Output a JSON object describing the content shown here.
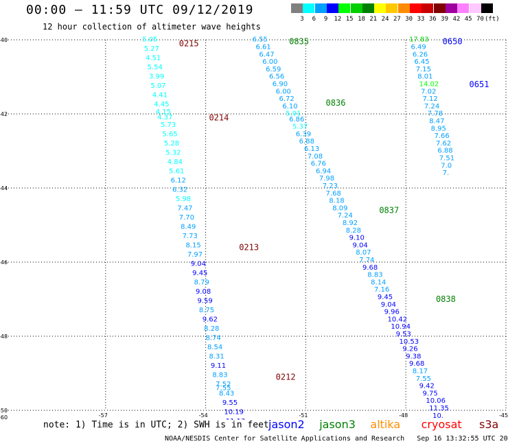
{
  "header": {
    "title": "00:00 — 11:59 UTC 09/12/2019",
    "subtitle": "12 hour collection of altimeter wave heights"
  },
  "colorbar": {
    "labels": [
      "3",
      "6",
      "9",
      "12",
      "15",
      "18",
      "21",
      "24",
      "27",
      "30",
      "33",
      "36",
      "39",
      "42",
      "45",
      "70",
      "(ft)"
    ],
    "colors": [
      "#808080",
      "#00ffff",
      "#00a0ff",
      "#0000ff",
      "#00ff00",
      "#00d000",
      "#008000",
      "#ffff00",
      "#ffc800",
      "#ff8c00",
      "#ff0000",
      "#c80000",
      "#800000",
      "#a000a0",
      "#ff80ff",
      "#ffc8ff",
      "#000000"
    ]
  },
  "footer": {
    "note": "note: 1) Time is in UTC; 2) SWH is in feet",
    "satellites": [
      {
        "name": "jason2",
        "color": "#0000ff"
      },
      {
        "name": "jason3",
        "color": "#008000"
      },
      {
        "name": "altika",
        "color": "#ff8c00"
      },
      {
        "name": "cryosat",
        "color": "#ff0000"
      },
      {
        "name": "s3a",
        "color": "#800000"
      }
    ],
    "credit": "NOAA/NESDIS Center for Satellite Applications and Research   Sep 16 13:32:55 UTC 2019"
  },
  "chart_data": {
    "type": "scatter",
    "xlim": [
      -60,
      -45
    ],
    "ylim": [
      -50,
      -40
    ],
    "x_ticks": [
      "-57",
      "-54",
      "-51",
      "-48",
      "-45"
    ],
    "y_ticks": [
      "-40",
      "-42",
      "-44",
      "-46",
      "-48",
      "-50"
    ],
    "corner_label": "-60",
    "grid": true,
    "series": [
      {
        "name": "cryosat",
        "color": "#800000",
        "time_labels": [
          {
            "text": "0215",
            "lon": -54.8,
            "lat": -40.1
          },
          {
            "text": "0214",
            "lon": -53.9,
            "lat": -42.1
          },
          {
            "text": "0213",
            "lon": -53.0,
            "lat": -45.6
          },
          {
            "text": "0212",
            "lon": -51.9,
            "lat": -49.1
          }
        ],
        "points": [
          {
            "lon": -55.9,
            "lat": -40.05,
            "v": "5.05"
          },
          {
            "lon": -55.85,
            "lat": -40.3,
            "v": "5.27"
          },
          {
            "lon": -55.8,
            "lat": -40.55,
            "v": "4.51"
          },
          {
            "lon": -55.75,
            "lat": -40.8,
            "v": "5.54"
          },
          {
            "lon": -55.7,
            "lat": -41.05,
            "v": "3.99"
          },
          {
            "lon": -55.65,
            "lat": -41.3,
            "v": "5.07"
          },
          {
            "lon": -55.6,
            "lat": -41.55,
            "v": "4.41"
          },
          {
            "lon": -55.55,
            "lat": -41.8,
            "v": "4.45"
          },
          {
            "lon": -55.5,
            "lat": -42.0,
            "v": "4.15"
          },
          {
            "lon": -55.45,
            "lat": -42.15,
            "v": "4.37"
          },
          {
            "lon": -55.35,
            "lat": -42.35,
            "v": "5.73"
          },
          {
            "lon": -55.3,
            "lat": -42.6,
            "v": "5.65"
          },
          {
            "lon": -55.25,
            "lat": -42.85,
            "v": "5.28"
          },
          {
            "lon": -55.2,
            "lat": -43.1,
            "v": "5.32"
          },
          {
            "lon": -55.15,
            "lat": -43.35,
            "v": "4.84"
          },
          {
            "lon": -55.1,
            "lat": -43.6,
            "v": "5.61"
          },
          {
            "lon": -55.05,
            "lat": -43.85,
            "v": "6.12"
          },
          {
            "lon": -55.0,
            "lat": -44.1,
            "v": "6.32"
          },
          {
            "lon": -54.9,
            "lat": -44.35,
            "v": "5.98"
          },
          {
            "lon": -54.85,
            "lat": -44.6,
            "v": "7.47"
          },
          {
            "lon": -54.8,
            "lat": -44.85,
            "v": "7.70"
          },
          {
            "lon": -54.75,
            "lat": -45.1,
            "v": "8.49"
          },
          {
            "lon": -54.7,
            "lat": -45.35,
            "v": "7.73"
          },
          {
            "lon": -54.6,
            "lat": -45.6,
            "v": "8.15"
          },
          {
            "lon": -54.55,
            "lat": -45.85,
            "v": "7.97"
          },
          {
            "lon": -54.45,
            "lat": -46.1,
            "v": "9.04"
          },
          {
            "lon": -54.4,
            "lat": -46.35,
            "v": "9.45"
          },
          {
            "lon": -54.35,
            "lat": -46.6,
            "v": "8.79"
          },
          {
            "lon": -54.3,
            "lat": -46.85,
            "v": "9.08"
          },
          {
            "lon": -54.25,
            "lat": -47.1,
            "v": "9.59"
          },
          {
            "lon": -54.2,
            "lat": -47.35,
            "v": "8.75"
          },
          {
            "lon": -54.1,
            "lat": -47.6,
            "v": "9.62"
          },
          {
            "lon": -54.05,
            "lat": -47.85,
            "v": "8.28"
          },
          {
            "lon": -54.0,
            "lat": -48.1,
            "v": "8.74"
          },
          {
            "lon": -53.95,
            "lat": -48.35,
            "v": "8.54"
          },
          {
            "lon": -53.9,
            "lat": -48.6,
            "v": "8.31"
          },
          {
            "lon": -53.85,
            "lat": -48.85,
            "v": "9.11"
          },
          {
            "lon": -53.8,
            "lat": -49.1,
            "v": "8.83"
          },
          {
            "lon": -53.7,
            "lat": -49.35,
            "v": "7.52"
          },
          {
            "lon": -53.7,
            "lat": -49.45,
            "v": "7.55"
          },
          {
            "lon": -53.6,
            "lat": -49.6,
            "v": "8.43"
          },
          {
            "lon": -53.5,
            "lat": -49.85,
            "v": "9.55"
          },
          {
            "lon": -53.45,
            "lat": -50.1,
            "v": "10.19"
          },
          {
            "lon": -53.4,
            "lat": -50.35,
            "v": "11.13"
          }
        ]
      },
      {
        "name": "jason3",
        "color": "#008000",
        "time_labels": [
          {
            "text": "0835",
            "lon": -51.5,
            "lat": -40.05
          },
          {
            "text": "0836",
            "lon": -50.4,
            "lat": -41.7
          },
          {
            "text": "0837",
            "lon": -48.8,
            "lat": -44.6
          },
          {
            "text": "0838",
            "lon": -47.1,
            "lat": -47.0
          }
        ],
        "points": [
          {
            "lon": -52.6,
            "lat": -40.05,
            "v": "6.55"
          },
          {
            "lon": -52.5,
            "lat": -40.25,
            "v": "6.61"
          },
          {
            "lon": -52.4,
            "lat": -40.45,
            "v": "6.47"
          },
          {
            "lon": -52.3,
            "lat": -40.65,
            "v": "6.00"
          },
          {
            "lon": -52.2,
            "lat": -40.85,
            "v": "6.59"
          },
          {
            "lon": -52.1,
            "lat": -41.05,
            "v": "6.56"
          },
          {
            "lon": -52.0,
            "lat": -41.25,
            "v": "6.90"
          },
          {
            "lon": -51.9,
            "lat": -41.45,
            "v": "6.00"
          },
          {
            "lon": -51.8,
            "lat": -41.65,
            "v": "6.72"
          },
          {
            "lon": -51.7,
            "lat": -41.85,
            "v": "6.10"
          },
          {
            "lon": -51.6,
            "lat": -42.05,
            "v": "5.91"
          },
          {
            "lon": -51.5,
            "lat": -42.2,
            "v": "6.86"
          },
          {
            "lon": -51.4,
            "lat": -42.4,
            "v": "5.37"
          },
          {
            "lon": -51.3,
            "lat": -42.6,
            "v": "6.39"
          },
          {
            "lon": -51.2,
            "lat": -42.8,
            "v": "6.88"
          },
          {
            "lon": -51.05,
            "lat": -43.0,
            "v": "6.13"
          },
          {
            "lon": -50.95,
            "lat": -43.2,
            "v": "7.08"
          },
          {
            "lon": -50.85,
            "lat": -43.4,
            "v": "6.76"
          },
          {
            "lon": -50.7,
            "lat": -43.6,
            "v": "6.94"
          },
          {
            "lon": -50.6,
            "lat": -43.8,
            "v": "7.98"
          },
          {
            "lon": -50.5,
            "lat": -44.0,
            "v": "7.23"
          },
          {
            "lon": -50.4,
            "lat": -44.2,
            "v": "7.68"
          },
          {
            "lon": -50.3,
            "lat": -44.4,
            "v": "8.18"
          },
          {
            "lon": -50.2,
            "lat": -44.6,
            "v": "8.09"
          },
          {
            "lon": -50.05,
            "lat": -44.8,
            "v": "7.24"
          },
          {
            "lon": -49.9,
            "lat": -45.0,
            "v": "8.92"
          },
          {
            "lon": -49.8,
            "lat": -45.2,
            "v": "8.28"
          },
          {
            "lon": -49.7,
            "lat": -45.4,
            "v": "9.10"
          },
          {
            "lon": -49.6,
            "lat": -45.6,
            "v": "9.04"
          },
          {
            "lon": -49.5,
            "lat": -45.8,
            "v": "8.07"
          },
          {
            "lon": -49.4,
            "lat": -46.0,
            "v": "7.74"
          },
          {
            "lon": -49.3,
            "lat": -46.2,
            "v": "9.68"
          },
          {
            "lon": -49.15,
            "lat": -46.4,
            "v": "8.83"
          },
          {
            "lon": -49.05,
            "lat": -46.6,
            "v": "8.14"
          },
          {
            "lon": -48.95,
            "lat": -46.8,
            "v": "7.16"
          },
          {
            "lon": -48.85,
            "lat": -47.0,
            "v": "9.45"
          },
          {
            "lon": -48.75,
            "lat": -47.2,
            "v": "9.04"
          },
          {
            "lon": -48.65,
            "lat": -47.4,
            "v": "9.96"
          },
          {
            "lon": -48.55,
            "lat": -47.6,
            "v": "10.42"
          },
          {
            "lon": -48.45,
            "lat": -47.8,
            "v": "10.94"
          },
          {
            "lon": -48.3,
            "lat": -48.0,
            "v": "9.53"
          },
          {
            "lon": -48.2,
            "lat": -48.2,
            "v": "10.53"
          },
          {
            "lon": -48.1,
            "lat": -48.4,
            "v": "9.26"
          },
          {
            "lon": -48.0,
            "lat": -48.6,
            "v": "9.38"
          },
          {
            "lon": -47.9,
            "lat": -48.8,
            "v": "9.68"
          },
          {
            "lon": -47.8,
            "lat": -49.0,
            "v": "8.17"
          },
          {
            "lon": -47.7,
            "lat": -49.2,
            "v": "7.55"
          },
          {
            "lon": -47.6,
            "lat": -49.4,
            "v": "9.42"
          },
          {
            "lon": -47.5,
            "lat": -49.6,
            "v": "9.75"
          },
          {
            "lon": -47.4,
            "lat": -49.8,
            "v": "10.06"
          },
          {
            "lon": -47.3,
            "lat": -50.0,
            "v": "11.35"
          },
          {
            "lon": -47.2,
            "lat": -50.2,
            "v": "10."
          },
          {
            "lon": -47.1,
            "lat": -50.4,
            "v": "10."
          }
        ]
      },
      {
        "name": "jason2",
        "color": "#0000ff",
        "time_labels": [
          {
            "text": "0650",
            "lon": -46.9,
            "lat": -40.05
          },
          {
            "text": "0651",
            "lon": -46.1,
            "lat": -41.2
          }
        ],
        "points": [
          {
            "lon": -47.9,
            "lat": -40.05,
            "v": "17.83"
          },
          {
            "lon": -47.85,
            "lat": -40.25,
            "v": "6.49"
          },
          {
            "lon": -47.8,
            "lat": -40.45,
            "v": "6.26"
          },
          {
            "lon": -47.75,
            "lat": -40.65,
            "v": "6.45"
          },
          {
            "lon": -47.7,
            "lat": -40.85,
            "v": "7.15"
          },
          {
            "lon": -47.65,
            "lat": -41.05,
            "v": "8.01"
          },
          {
            "lon": -47.6,
            "lat": -41.25,
            "v": "14.02"
          },
          {
            "lon": -47.55,
            "lat": -41.45,
            "v": "7.02"
          },
          {
            "lon": -47.5,
            "lat": -41.65,
            "v": "7.12"
          },
          {
            "lon": -47.45,
            "lat": -41.85,
            "v": "7.24"
          },
          {
            "lon": -47.35,
            "lat": -42.05,
            "v": "7.78"
          },
          {
            "lon": -47.3,
            "lat": -42.25,
            "v": "8.47"
          },
          {
            "lon": -47.25,
            "lat": -42.45,
            "v": "8.95"
          },
          {
            "lon": -47.15,
            "lat": -42.65,
            "v": "7.66"
          },
          {
            "lon": -47.1,
            "lat": -42.85,
            "v": "7.62"
          },
          {
            "lon": -47.05,
            "lat": -43.05,
            "v": "6.88"
          },
          {
            "lon": -47.0,
            "lat": -43.25,
            "v": "7.51"
          },
          {
            "lon": -46.95,
            "lat": -43.45,
            "v": "7.0"
          },
          {
            "lon": -46.9,
            "lat": -43.65,
            "v": "7."
          }
        ]
      }
    ]
  }
}
